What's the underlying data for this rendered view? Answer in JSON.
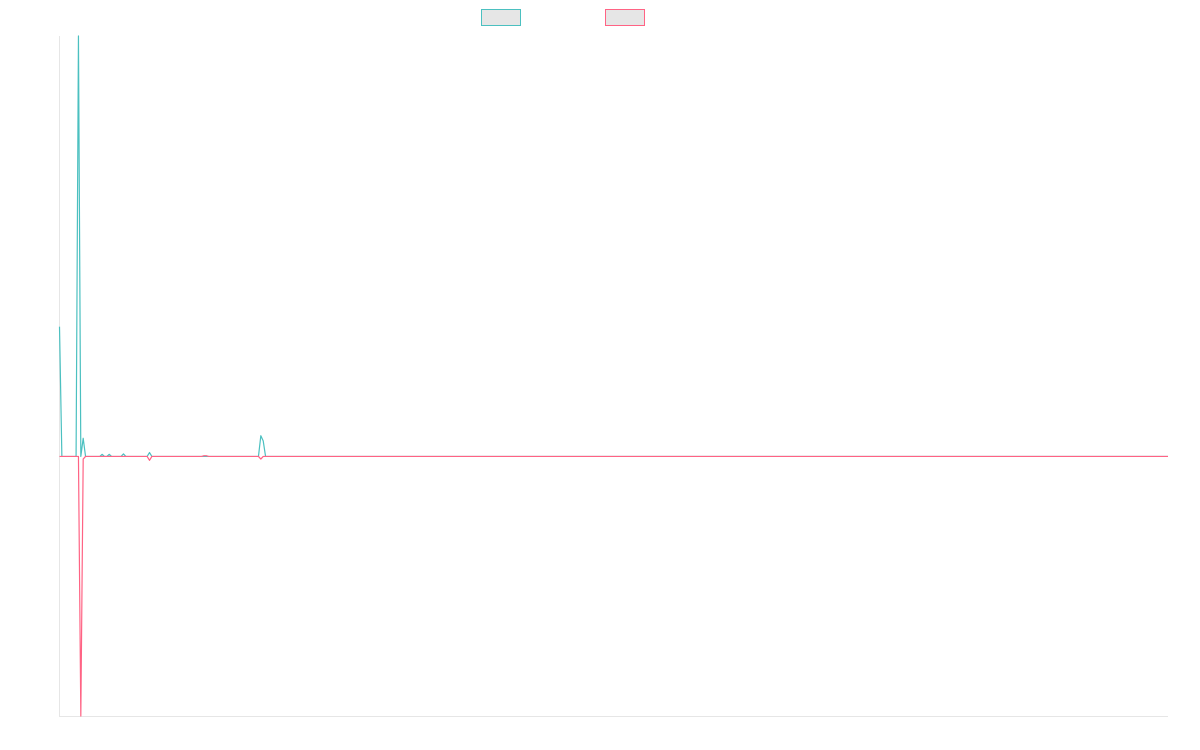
{
  "chart_data": {
    "type": "line",
    "title": "",
    "xlabel": "",
    "ylabel": "",
    "ylim": [
      -100,
      162
    ],
    "grid": false,
    "legend": "top-center",
    "series": [
      {
        "name": "",
        "color": "#4bc0c0",
        "fill": "#e6e6e6",
        "points": [
          [
            0,
            50
          ],
          [
            1,
            0
          ],
          [
            2,
            0
          ],
          [
            3,
            0
          ],
          [
            4,
            0
          ],
          [
            5,
            0
          ],
          [
            6,
            0
          ],
          [
            7,
            0
          ],
          [
            8,
            162
          ],
          [
            9,
            0
          ],
          [
            10,
            7
          ],
          [
            11,
            0
          ],
          [
            12,
            0
          ],
          [
            13,
            0
          ],
          [
            14,
            0
          ],
          [
            15,
            0
          ],
          [
            16,
            0
          ],
          [
            17,
            0
          ],
          [
            18,
            0.8
          ],
          [
            19,
            0
          ],
          [
            20,
            0
          ],
          [
            21,
            0.8
          ],
          [
            22,
            0
          ],
          [
            23,
            0
          ],
          [
            24,
            0
          ],
          [
            25,
            0
          ],
          [
            26,
            0
          ],
          [
            27,
            1
          ],
          [
            28,
            0
          ],
          [
            29,
            0
          ],
          [
            30,
            0
          ],
          [
            31,
            0
          ],
          [
            32,
            0
          ],
          [
            33,
            0
          ],
          [
            34,
            0
          ],
          [
            35,
            0
          ],
          [
            36,
            0
          ],
          [
            37,
            0
          ],
          [
            38,
            1.5
          ],
          [
            39,
            0
          ],
          [
            40,
            0
          ],
          [
            41,
            0
          ],
          [
            42,
            0
          ],
          [
            43,
            0
          ],
          [
            44,
            0
          ],
          [
            45,
            0
          ],
          [
            46,
            0
          ],
          [
            47,
            0
          ],
          [
            48,
            0
          ],
          [
            49,
            0
          ],
          [
            50,
            0
          ],
          [
            51,
            0
          ],
          [
            52,
            0
          ],
          [
            53,
            0
          ],
          [
            54,
            0
          ],
          [
            55,
            0
          ],
          [
            56,
            0
          ],
          [
            57,
            0
          ],
          [
            58,
            0
          ],
          [
            59,
            0
          ],
          [
            60,
            0
          ],
          [
            61,
            0
          ],
          [
            62,
            0
          ],
          [
            63,
            0
          ],
          [
            64,
            0
          ],
          [
            65,
            0
          ],
          [
            66,
            0
          ],
          [
            67,
            0
          ],
          [
            68,
            0
          ],
          [
            69,
            0
          ],
          [
            70,
            0
          ],
          [
            71,
            0
          ],
          [
            72,
            0
          ],
          [
            73,
            0
          ],
          [
            74,
            0
          ],
          [
            75,
            0
          ],
          [
            76,
            0
          ],
          [
            77,
            0
          ],
          [
            78,
            0
          ],
          [
            79,
            0
          ],
          [
            80,
            0
          ],
          [
            81,
            0
          ],
          [
            82,
            0
          ],
          [
            83,
            0
          ],
          [
            84,
            0
          ],
          [
            85,
            8
          ],
          [
            86,
            6
          ],
          [
            87,
            0
          ],
          [
            88,
            0
          ],
          [
            89,
            0
          ],
          [
            90,
            0
          ],
          [
            91,
            0
          ],
          [
            92,
            0
          ],
          [
            93,
            0
          ],
          [
            94,
            0
          ],
          [
            95,
            0
          ],
          [
            96,
            0
          ],
          [
            97,
            0
          ],
          [
            98,
            0
          ],
          [
            99,
            0
          ],
          [
            100,
            0
          ],
          [
            110,
            0
          ],
          [
            120,
            0
          ],
          [
            140,
            0
          ],
          [
            160,
            0
          ],
          [
            180,
            0
          ],
          [
            200,
            0
          ],
          [
            250,
            0
          ],
          [
            300,
            0
          ],
          [
            350,
            0
          ],
          [
            400,
            0
          ],
          [
            450,
            0
          ],
          [
            468,
            0
          ]
        ]
      },
      {
        "name": "",
        "color": "#ff6384",
        "fill": "#e6e6e6",
        "points": [
          [
            0,
            0
          ],
          [
            1,
            0
          ],
          [
            2,
            0
          ],
          [
            3,
            0
          ],
          [
            4,
            0
          ],
          [
            5,
            0
          ],
          [
            6,
            0
          ],
          [
            7,
            0
          ],
          [
            8,
            0
          ],
          [
            9,
            -100
          ],
          [
            10,
            -1
          ],
          [
            11,
            0
          ],
          [
            12,
            0
          ],
          [
            13,
            0
          ],
          [
            14,
            0
          ],
          [
            15,
            0
          ],
          [
            16,
            0
          ],
          [
            17,
            0
          ],
          [
            18,
            0
          ],
          [
            19,
            0
          ],
          [
            20,
            0
          ],
          [
            21,
            0
          ],
          [
            22,
            0
          ],
          [
            23,
            0
          ],
          [
            24,
            0
          ],
          [
            25,
            0
          ],
          [
            26,
            0
          ],
          [
            27,
            0
          ],
          [
            28,
            0
          ],
          [
            29,
            0
          ],
          [
            30,
            0
          ],
          [
            31,
            0
          ],
          [
            32,
            0
          ],
          [
            33,
            0
          ],
          [
            34,
            0
          ],
          [
            35,
            0
          ],
          [
            36,
            0
          ],
          [
            37,
            0
          ],
          [
            38,
            -1.5
          ],
          [
            39,
            0
          ],
          [
            40,
            0
          ],
          [
            41,
            0
          ],
          [
            42,
            0
          ],
          [
            43,
            0
          ],
          [
            44,
            0
          ],
          [
            45,
            0
          ],
          [
            46,
            0
          ],
          [
            47,
            0
          ],
          [
            48,
            0
          ],
          [
            49,
            0
          ],
          [
            50,
            0
          ],
          [
            51,
            0
          ],
          [
            52,
            0
          ],
          [
            53,
            0
          ],
          [
            54,
            0
          ],
          [
            55,
            0
          ],
          [
            56,
            0
          ],
          [
            57,
            0
          ],
          [
            58,
            0
          ],
          [
            59,
            0
          ],
          [
            60,
            0
          ],
          [
            61,
            0.3
          ],
          [
            62,
            0.3
          ],
          [
            63,
            0
          ],
          [
            64,
            0
          ],
          [
            65,
            0
          ],
          [
            66,
            0
          ],
          [
            67,
            0
          ],
          [
            68,
            0
          ],
          [
            69,
            0
          ],
          [
            70,
            0
          ],
          [
            71,
            0
          ],
          [
            72,
            0
          ],
          [
            73,
            0
          ],
          [
            74,
            0
          ],
          [
            75,
            0
          ],
          [
            76,
            0
          ],
          [
            77,
            0
          ],
          [
            78,
            0
          ],
          [
            79,
            0
          ],
          [
            80,
            0
          ],
          [
            81,
            0
          ],
          [
            82,
            0
          ],
          [
            83,
            0
          ],
          [
            84,
            0
          ],
          [
            85,
            -1
          ],
          [
            86,
            0
          ],
          [
            87,
            0
          ],
          [
            88,
            0
          ],
          [
            89,
            0
          ],
          [
            90,
            0
          ],
          [
            91,
            0
          ],
          [
            92,
            0
          ],
          [
            93,
            0
          ],
          [
            94,
            0
          ],
          [
            95,
            0
          ],
          [
            96,
            0
          ],
          [
            97,
            0
          ],
          [
            98,
            0
          ],
          [
            99,
            0
          ],
          [
            100,
            0
          ],
          [
            110,
            0
          ],
          [
            120,
            0
          ],
          [
            140,
            0
          ],
          [
            160,
            0
          ],
          [
            180,
            0
          ],
          [
            200,
            0
          ],
          [
            250,
            0
          ],
          [
            300,
            0
          ],
          [
            350,
            0
          ],
          [
            400,
            0
          ],
          [
            450,
            0
          ],
          [
            468,
            0
          ]
        ]
      }
    ],
    "xlim": [
      0,
      468
    ]
  }
}
